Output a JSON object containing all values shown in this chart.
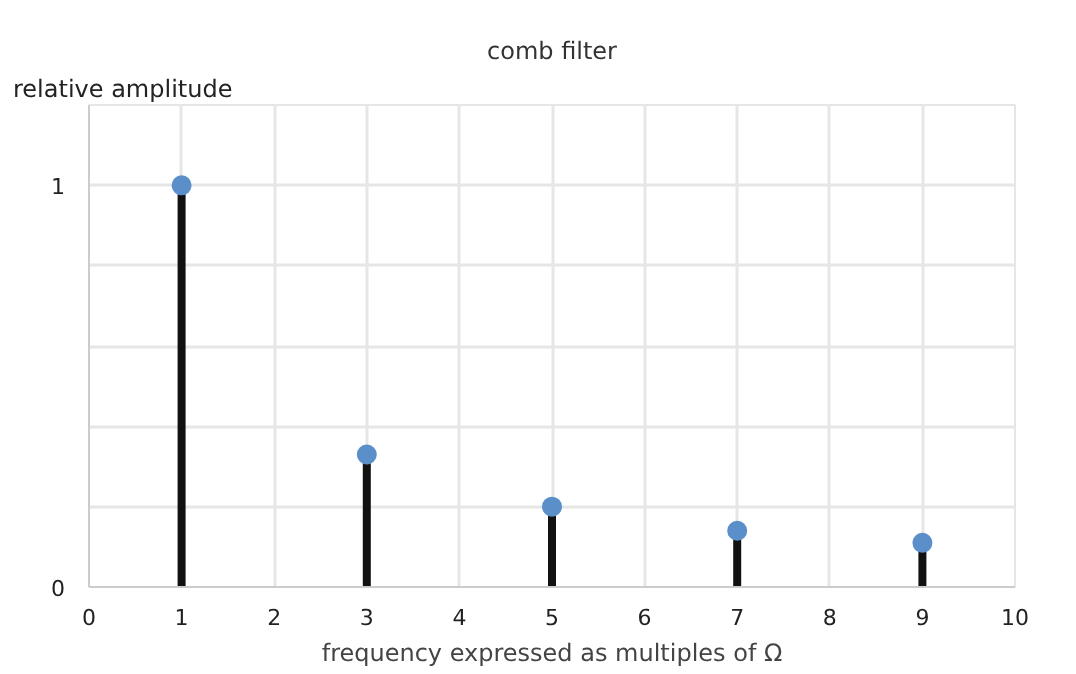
{
  "chart_data": {
    "type": "lollipop",
    "title": "comb filter",
    "xlabel": "frequency expressed as multiples of Ω",
    "ylabel": "relative amplitude",
    "x": [
      1,
      3,
      5,
      7,
      9
    ],
    "series": [
      {
        "color": "#5b8fc9",
        "values": [
          1,
          0.33,
          0.2,
          0.14,
          0.11
        ]
      }
    ],
    "xlim": [
      0,
      10
    ],
    "xticks": [
      0,
      1,
      2,
      3,
      4,
      5,
      6,
      7,
      8,
      9,
      10
    ],
    "ylim": [
      0,
      1.2
    ],
    "yticks": [
      0,
      {
        "value": 0.2,
        "label": null
      },
      {
        "value": 0.4,
        "label": null
      },
      {
        "value": 0.6,
        "label": null
      },
      {
        "value": 0.8,
        "label": null
      },
      1,
      {
        "value": 1.2,
        "label": null
      }
    ],
    "grid": true,
    "marker": "circle"
  }
}
